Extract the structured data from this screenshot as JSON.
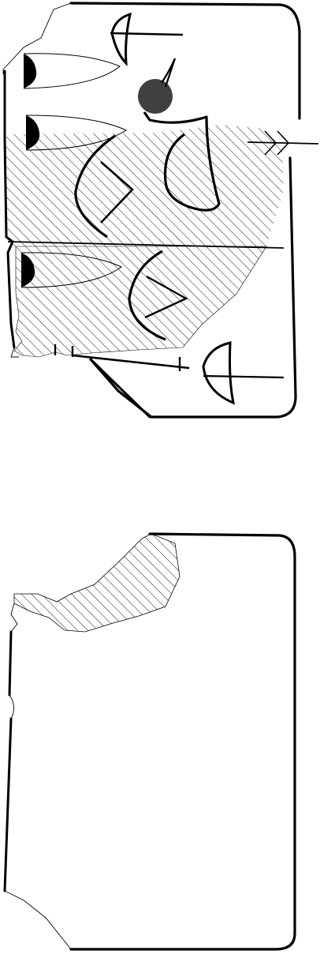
{
  "figure": {
    "subject": "tablet-fragment-drawing",
    "views": [
      {
        "id": "obverse",
        "hatched_regions": 2,
        "signs": [
          "sign-1",
          "sign-2",
          "sign-3",
          "sign-4",
          "sign-5",
          "sign-6",
          "sign-7",
          "sign-8"
        ]
      },
      {
        "id": "reverse",
        "hatched_regions": 1,
        "signs": []
      }
    ],
    "colors": {
      "ink": "#000000",
      "paper": "#ffffff",
      "marker": "#404040"
    }
  }
}
